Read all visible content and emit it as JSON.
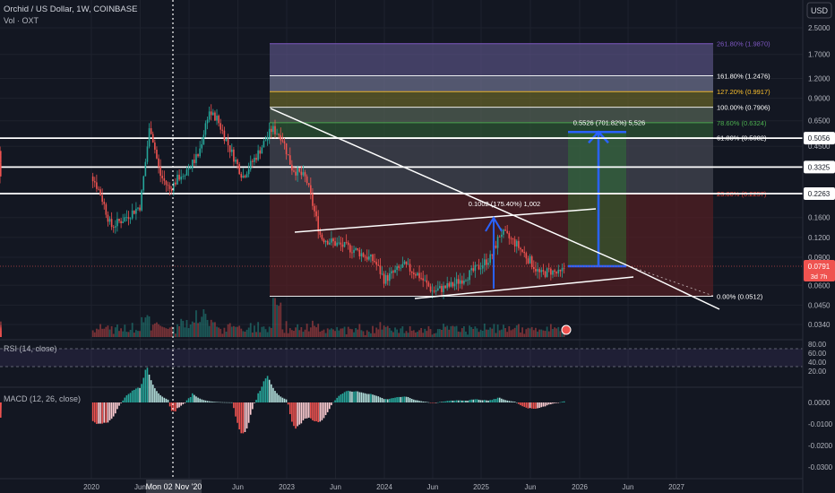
{
  "header": {
    "title": "Orchid / US Dollar, 1W, COINBASE",
    "volume_label": "Vol · OXT"
  },
  "currency_button": "USD",
  "crosshair_date_label": "Mon 02 Nov '20",
  "colors": {
    "background": "#131722",
    "bull": "#26a69a",
    "bear": "#ef5350",
    "grid": "#1e222d",
    "text": "#b2b5be",
    "white": "#ffffff",
    "arrow": "#2962ff"
  },
  "chart_data": [
    {
      "type": "candlestick",
      "name": "price",
      "y_scale": "log",
      "y_ticks": [
        "2.5000",
        "1.7000",
        "1.2000",
        "0.9000",
        "0.6500",
        "0.4500",
        "0.3300",
        "0.2300",
        "0.1600",
        "0.1200",
        "0.0900",
        "0.0600",
        "0.0450",
        "0.0340"
      ],
      "x_ticks": [
        "2020",
        "Jun",
        "2022",
        "Jun",
        "2023",
        "Jun",
        "2024",
        "Jun",
        "2025",
        "Jun",
        "2026",
        "Jun",
        "2027"
      ],
      "price_labels": [
        {
          "value": 0.5056,
          "text": "0.5056"
        },
        {
          "value": 0.3325,
          "text": "0.3325"
        },
        {
          "value": 0.2263,
          "text": "0.2263"
        },
        {
          "value": 0.0791,
          "text": "0.0791",
          "sub": "3d 7h"
        }
      ],
      "fibonacci": [
        {
          "level": "261.80%",
          "price": 1.987,
          "text": "261.80% (1.9870)",
          "color": "#7e57c2"
        },
        {
          "level": "161.80%",
          "price": 1.2476,
          "text": "161.80% (1.2476)",
          "color": "#ffffff"
        },
        {
          "level": "127.20%",
          "price": 0.9917,
          "text": "127.20% (0.9917)",
          "color": "#fbc02d"
        },
        {
          "level": "100.00%",
          "price": 0.7906,
          "text": "100.00% (0.7906)",
          "color": "#ffffff"
        },
        {
          "level": "78.60%",
          "price": 0.6324,
          "text": "78.60% (0.6324)",
          "color": "#4caf50"
        },
        {
          "level": "61.80%",
          "price": 0.5082,
          "text": "61.80% (0.5082)",
          "color": "#ffffff"
        },
        {
          "level": "23.60%",
          "price": 0.2257,
          "text": "23.60% (0.2257)",
          "color": "#f44336"
        },
        {
          "level": "0.00%",
          "price": 0.0512,
          "text": "0.00% (0.0512)",
          "color": "#ffffff"
        }
      ],
      "annotations": [
        {
          "text": "0.1002 (175.40%) 1,002"
        },
        {
          "text": "0.5526 (701.82%) 5,526"
        }
      ]
    },
    {
      "type": "line",
      "name": "RSI (14, close)",
      "y_ticks": [
        "80.00",
        "60.00",
        "40.00",
        "20.00"
      ]
    },
    {
      "type": "histogram",
      "name": "MACD (12, 26, close)",
      "y_ticks": [
        "0.0000",
        "-0.0100",
        "-0.0200",
        "-0.0300"
      ]
    }
  ]
}
